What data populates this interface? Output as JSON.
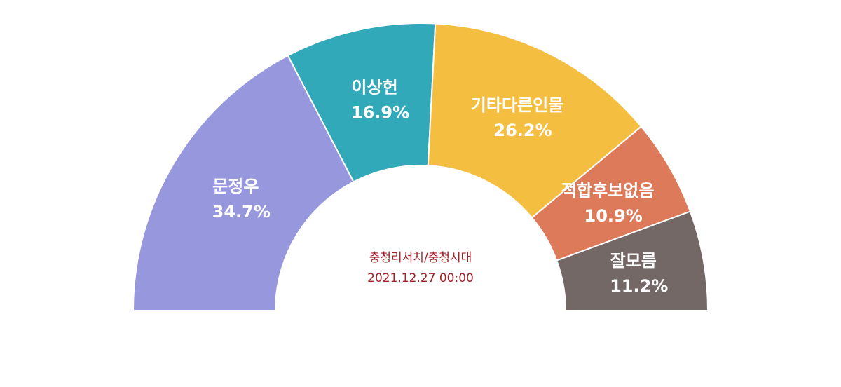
{
  "chart_data": {
    "type": "half-donut",
    "subtitle": "충청리서치/충청시대",
    "date": "2021.12.27 00:00",
    "categories": [
      "문정우",
      "이상헌",
      "기타다른인물",
      "적합후보없음",
      "잘모름"
    ],
    "values": [
      34.7,
      16.9,
      26.2,
      10.9,
      11.2
    ],
    "value_labels": [
      "34.7%",
      "16.9%",
      "26.2%",
      "10.9%",
      "11.2%"
    ],
    "colors": [
      "#9797dd",
      "#31a9b8",
      "#f4be41",
      "#dd7a5a",
      "#736866"
    ]
  }
}
